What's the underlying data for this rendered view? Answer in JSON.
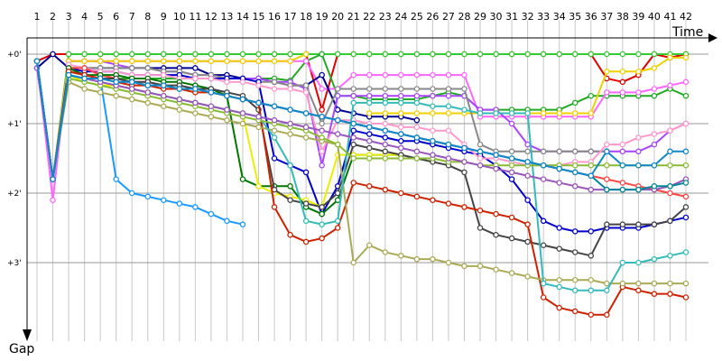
{
  "chart_data": {
    "type": "line",
    "xlabel": "Time",
    "ylabel": "Gap",
    "x": [
      1,
      2,
      3,
      4,
      5,
      6,
      7,
      8,
      9,
      10,
      11,
      12,
      13,
      14,
      15,
      16,
      17,
      18,
      19,
      20,
      21,
      22,
      23,
      24,
      25,
      26,
      27,
      28,
      29,
      30,
      31,
      32,
      33,
      34,
      35,
      36,
      37,
      38,
      39,
      40,
      41,
      42
    ],
    "x_tick_labels": [
      "1",
      "2",
      "3",
      "4",
      "5",
      "6",
      "7",
      "8",
      "9",
      "10",
      "11",
      "12",
      "13",
      "14",
      "15",
      "16",
      "17",
      "18",
      "19",
      "20",
      "21",
      "22",
      "23",
      "24",
      "25",
      "26",
      "27",
      "28",
      "29",
      "30",
      "31",
      "32",
      "33",
      "34",
      "35",
      "36",
      "37",
      "38",
      "39",
      "40",
      "41",
      "42"
    ],
    "y_tick_values": [
      0,
      1,
      2,
      3
    ],
    "y_tick_labels": [
      "+0'",
      "+1'",
      "+2'",
      "+3'"
    ],
    "ylim": [
      0,
      4
    ],
    "y_inverted": true,
    "grid": {
      "vertical": true,
      "horizontal": true
    },
    "legend": "none",
    "series": [
      {
        "color": "#e00000",
        "values": [
          0.1,
          0,
          0,
          0,
          0,
          0,
          0,
          0,
          0,
          0,
          0,
          0,
          0,
          0,
          0,
          0,
          0,
          0,
          0.8,
          0,
          0,
          0,
          0,
          0,
          0,
          0,
          0,
          0,
          0,
          0,
          0,
          0,
          0,
          0,
          0,
          0,
          0.35,
          0.4,
          0.3,
          0,
          0.05,
          0
        ]
      },
      {
        "color": "#33cc33",
        "values": [
          0.1,
          1.8,
          0,
          0,
          0,
          0,
          0,
          0,
          0,
          0,
          0,
          0,
          0,
          0,
          0,
          0,
          0,
          0,
          0,
          0,
          0,
          0,
          0,
          0,
          0,
          0,
          0,
          0,
          0,
          0,
          0,
          0,
          0,
          0,
          0,
          0,
          0,
          0,
          0,
          0,
          0,
          0
        ]
      },
      {
        "color": "#22aa22",
        "values": [
          0.1,
          1.8,
          0.3,
          0.35,
          0.35,
          0.35,
          0.35,
          0.35,
          0.35,
          0.35,
          0.35,
          0.35,
          0.35,
          0.35,
          0.35,
          0.35,
          0.38,
          0.1,
          0,
          0.6,
          0.6,
          0.65,
          0.65,
          0.65,
          0.65,
          0.6,
          0.55,
          0.6,
          0.8,
          0.8,
          0.8,
          0.8,
          0.8,
          0.8,
          0.7,
          0.6,
          0.6,
          0.6,
          0.6,
          0.6,
          0.5,
          0.6
        ]
      },
      {
        "color": "#ff66ff",
        "values": [
          0.1,
          2.1,
          0.1,
          0.1,
          0.1,
          0.1,
          0.1,
          0.1,
          0.1,
          0.1,
          0.1,
          0.1,
          0.1,
          0.1,
          0.1,
          0.1,
          0.1,
          0.1,
          0.5,
          0.5,
          0.3,
          0.3,
          0.3,
          0.3,
          0.3,
          0.3,
          0.3,
          0.3,
          0.9,
          0.9,
          0.9,
          0.9,
          0.9,
          0.9,
          0.9,
          0.9,
          0.55,
          0.55,
          0.55,
          0.5,
          0.45,
          0.4
        ]
      },
      {
        "color": "#000090",
        "values": [
          0.2,
          0,
          0.2,
          0.2,
          0.2,
          0.2,
          0.2,
          0.2,
          0.2,
          0.2,
          0.2,
          0.3,
          0.3,
          0.35,
          0.35,
          0.4,
          0.45,
          0.45,
          0.3,
          0.8,
          0.85,
          0.9,
          0.9,
          0.9,
          0.95,
          null,
          null,
          null,
          null,
          null,
          null,
          null,
          null,
          null,
          null,
          null,
          null,
          null,
          null,
          null,
          null,
          null
        ]
      },
      {
        "color": "#aa44ff",
        "values": [
          0.2,
          1.8,
          0.1,
          0.1,
          0.1,
          0.15,
          0.2,
          0.2,
          0.25,
          0.25,
          0.3,
          0.3,
          0.35,
          0.35,
          0.35,
          0.4,
          0.4,
          0.5,
          1.6,
          0.6,
          0.6,
          0.6,
          0.6,
          0.6,
          0.6,
          0.6,
          0.6,
          0.6,
          0.8,
          0.8,
          1.0,
          1.3,
          1.4,
          1.4,
          1.4,
          1.4,
          1.4,
          1.4,
          1.4,
          1.3,
          1.1,
          1.0
        ]
      },
      {
        "color": "#f0d000",
        "values": [
          0.1,
          1.8,
          0.1,
          0.1,
          0.1,
          0.1,
          0.1,
          0.1,
          0.1,
          0.1,
          0.1,
          0.1,
          0.1,
          0.1,
          0.1,
          0.1,
          0.1,
          0.0,
          null,
          null,
          null,
          0.85,
          0.85,
          0.85,
          0.85,
          0.85,
          0.85,
          0.85,
          0.85,
          0.85,
          0.85,
          0.85,
          0.85,
          0.85,
          0.85,
          0.85,
          0.25,
          0.25,
          0.25,
          0.2,
          0.05,
          0.05
        ]
      },
      {
        "color": "#888888",
        "values": [
          0.1,
          1.8,
          0.2,
          0.2,
          0.2,
          0.2,
          0.2,
          0.2,
          0.25,
          0.25,
          0.3,
          0.3,
          0.35,
          0.35,
          0.4,
          0.4,
          0.45,
          0.45,
          1.0,
          0.5,
          0.5,
          0.5,
          0.5,
          0.5,
          0.5,
          0.5,
          0.5,
          0.5,
          1.3,
          1.4,
          1.4,
          1.4,
          1.4,
          1.4,
          1.4,
          1.4,
          1.4,
          null,
          null,
          null,
          null,
          null
        ]
      },
      {
        "color": "#1a9aff",
        "values": [
          0.1,
          1.8,
          0.2,
          0.3,
          0.35,
          1.8,
          2.0,
          2.05,
          2.1,
          2.15,
          2.2,
          2.3,
          2.4,
          2.45,
          null,
          null,
          null,
          null,
          null,
          null,
          null,
          null,
          null,
          null,
          null,
          null,
          null,
          null,
          null,
          null,
          null,
          null,
          null,
          null,
          null,
          null,
          null,
          null,
          null,
          null,
          null,
          null
        ]
      },
      {
        "color": "#0000cc",
        "values": [
          0.1,
          1.8,
          0.2,
          0.25,
          0.25,
          0.25,
          0.3,
          0.3,
          0.3,
          0.3,
          0.35,
          0.35,
          0.35,
          0.35,
          0.4,
          1.5,
          1.6,
          1.7,
          2.3,
          1.9,
          1.1,
          1.15,
          1.2,
          1.25,
          1.25,
          1.3,
          1.35,
          1.4,
          1.45,
          1.6,
          1.8,
          2.1,
          2.4,
          2.5,
          2.55,
          2.55,
          2.5,
          2.5,
          2.5,
          2.45,
          2.4,
          2.35
        ]
      },
      {
        "color": "#ff99cc",
        "values": [
          0.1,
          1.8,
          0.15,
          0.2,
          0.25,
          0.25,
          0.3,
          0.3,
          0.3,
          0.35,
          0.35,
          0.35,
          0.4,
          0.4,
          0.45,
          0.5,
          0.5,
          0.55,
          1.4,
          0.95,
          0.95,
          1.0,
          1.0,
          1.05,
          1.05,
          1.1,
          1.1,
          1.3,
          1.5,
          1.5,
          1.55,
          1.6,
          1.6,
          1.6,
          1.55,
          1.55,
          1.3,
          1.3,
          1.2,
          1.15,
          1.1,
          1.0
        ]
      },
      {
        "color": "#ff4444",
        "values": [
          0.1,
          1.8,
          0.2,
          0.2,
          0.3,
          0.35,
          0.4,
          0.4,
          0.45,
          0.5,
          0.5,
          0.55,
          0.6,
          0.65,
          0.7,
          0.75,
          0.8,
          0.85,
          0.9,
          0.95,
          1.0,
          1.05,
          1.1,
          1.15,
          1.2,
          1.25,
          1.3,
          1.35,
          1.4,
          1.45,
          1.5,
          1.55,
          1.6,
          1.65,
          1.7,
          1.75,
          1.8,
          1.85,
          1.9,
          1.95,
          2.0,
          2.05
        ]
      },
      {
        "color": "#007700",
        "values": [
          0.1,
          1.8,
          0.2,
          0.3,
          0.3,
          0.3,
          0.35,
          0.35,
          0.4,
          0.4,
          0.45,
          0.5,
          0.6,
          1.8,
          1.9,
          1.9,
          1.9,
          2.2,
          2.3,
          2.1,
          1.45,
          1.45,
          1.45,
          1.45,
          null,
          null,
          null,
          null,
          null,
          null,
          null,
          null,
          null,
          null,
          null,
          null,
          null,
          null,
          null,
          null,
          null,
          null
        ]
      },
      {
        "color": "#eeee00",
        "values": [
          0.1,
          1.8,
          0.3,
          0.4,
          0.45,
          0.45,
          0.5,
          0.55,
          0.6,
          0.65,
          0.7,
          0.75,
          0.8,
          0.85,
          1.9,
          2.0,
          2.05,
          2.1,
          2.2,
          1.45,
          1.45,
          1.45,
          1.45,
          1.45,
          null,
          null,
          null,
          null,
          null,
          null,
          null,
          null,
          null,
          null,
          null,
          null,
          null,
          null,
          null,
          null,
          null,
          null
        ]
      },
      {
        "color": "#444444",
        "values": [
          0.1,
          1.8,
          0.25,
          0.3,
          0.35,
          0.35,
          0.4,
          0.4,
          0.45,
          0.45,
          0.5,
          0.5,
          0.55,
          0.6,
          0.8,
          1.95,
          2.1,
          2.15,
          2.2,
          2.0,
          1.3,
          1.35,
          1.4,
          1.45,
          1.5,
          1.55,
          1.6,
          1.7,
          2.5,
          2.6,
          2.65,
          2.7,
          2.75,
          2.8,
          2.85,
          2.9,
          2.45,
          2.45,
          2.45,
          2.45,
          2.4,
          2.2
        ]
      },
      {
        "color": "#cc2200",
        "values": [
          0.1,
          1.8,
          0.25,
          0.3,
          0.35,
          0.4,
          0.45,
          0.45,
          0.5,
          0.5,
          0.55,
          0.55,
          0.6,
          0.65,
          0.7,
          2.2,
          2.6,
          2.7,
          2.65,
          2.5,
          1.85,
          1.9,
          1.95,
          2.0,
          2.05,
          2.1,
          2.15,
          2.2,
          2.25,
          2.3,
          2.35,
          2.45,
          3.5,
          3.65,
          3.7,
          3.75,
          3.75,
          3.35,
          3.4,
          3.45,
          3.45,
          3.5
        ]
      },
      {
        "color": "#aaaa55",
        "values": [
          0.1,
          1.8,
          0.4,
          0.5,
          0.55,
          0.6,
          0.65,
          0.7,
          0.75,
          0.8,
          0.85,
          0.9,
          0.95,
          1.0,
          1.05,
          1.1,
          1.15,
          1.2,
          1.25,
          1.3,
          3.0,
          2.75,
          2.85,
          2.9,
          2.95,
          2.95,
          3.0,
          3.05,
          3.05,
          3.1,
          3.15,
          3.2,
          3.25,
          3.25,
          3.25,
          3.25,
          3.3,
          3.3,
          3.3,
          3.3,
          3.3,
          3.3
        ]
      },
      {
        "color": "#33bbbb",
        "values": [
          0.1,
          1.8,
          0.3,
          0.35,
          0.4,
          0.45,
          0.5,
          0.55,
          0.6,
          0.65,
          0.7,
          0.75,
          0.8,
          0.85,
          0.9,
          1.2,
          1.6,
          2.4,
          2.45,
          2.4,
          0.7,
          0.7,
          0.7,
          0.7,
          0.7,
          0.75,
          0.75,
          0.8,
          0.85,
          0.85,
          0.85,
          0.85,
          3.3,
          3.35,
          3.4,
          3.4,
          3.4,
          3.0,
          3.0,
          2.95,
          2.9,
          2.85
        ]
      },
      {
        "color": "#88bb33",
        "values": [
          0.1,
          1.8,
          0.35,
          0.4,
          0.45,
          0.5,
          0.55,
          0.6,
          0.65,
          0.7,
          0.75,
          0.8,
          0.85,
          0.9,
          0.95,
          1.0,
          1.05,
          1.1,
          1.2,
          1.3,
          1.5,
          1.5,
          1.5,
          1.5,
          1.5,
          1.5,
          1.55,
          1.55,
          1.6,
          1.6,
          1.6,
          1.6,
          1.6,
          1.6,
          1.6,
          1.6,
          1.6,
          1.6,
          1.6,
          1.6,
          1.6,
          1.6
        ]
      },
      {
        "color": "#9955bb",
        "values": [
          0.1,
          1.8,
          0.3,
          0.35,
          0.4,
          0.45,
          0.5,
          0.55,
          0.6,
          0.65,
          0.7,
          0.75,
          0.8,
          0.85,
          0.9,
          0.95,
          1.0,
          1.05,
          1.1,
          1.15,
          1.2,
          1.25,
          1.3,
          1.35,
          1.4,
          1.45,
          1.5,
          1.55,
          1.6,
          1.65,
          1.7,
          1.75,
          1.8,
          1.85,
          1.9,
          1.95,
          1.95,
          1.95,
          1.95,
          1.95,
          1.9,
          1.8
        ]
      },
      {
        "color": "#008899",
        "values": [
          0.1,
          1.8,
          0.3,
          0.35,
          0.35,
          0.4,
          0.4,
          0.45,
          0.45,
          0.5,
          0.5,
          0.55,
          0.6,
          0.65,
          0.7,
          0.75,
          0.8,
          0.85,
          0.9,
          0.95,
          1.0,
          1.05,
          1.1,
          1.15,
          1.2,
          1.25,
          1.3,
          1.35,
          1.4,
          1.45,
          1.5,
          1.55,
          1.6,
          1.65,
          1.7,
          1.75,
          1.95,
          1.95,
          1.95,
          1.9,
          1.9,
          1.85
        ]
      },
      {
        "color": "#1188cc",
        "values": [
          0.1,
          1.8,
          0.3,
          0.35,
          0.35,
          0.4,
          0.4,
          0.45,
          0.45,
          0.5,
          0.5,
          0.55,
          0.6,
          0.65,
          0.7,
          0.75,
          0.8,
          0.85,
          0.9,
          0.95,
          1.0,
          1.05,
          1.1,
          1.15,
          1.2,
          1.25,
          1.3,
          1.35,
          1.4,
          1.45,
          1.5,
          1.55,
          1.6,
          1.65,
          1.7,
          1.75,
          1.4,
          1.6,
          1.6,
          1.6,
          1.4,
          1.4
        ]
      }
    ]
  }
}
